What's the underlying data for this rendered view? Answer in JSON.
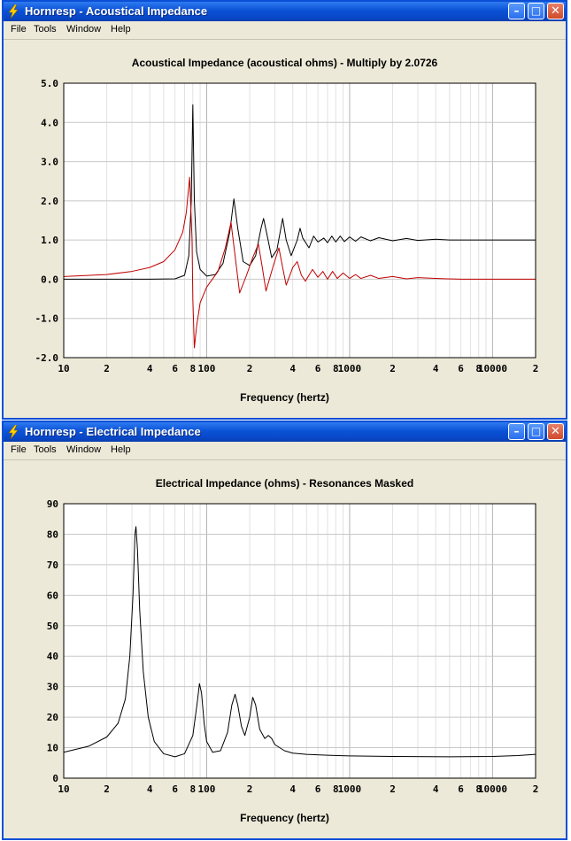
{
  "windows": [
    {
      "title": "Hornresp - Acoustical Impedance",
      "menu": [
        "File",
        "Tools",
        "Window",
        "Help"
      ],
      "chart_data": {
        "type": "line",
        "title": "Acoustical Impedance (acoustical ohms) - Multiply by 2.0726",
        "xlabel": "Frequency (hertz)",
        "ylabel": "",
        "xscale": "log",
        "xlim": [
          10,
          20000
        ],
        "ylim": [
          -2.0,
          5.0
        ],
        "yticks": [
          "5.0",
          "4.0",
          "3.0",
          "2.0",
          "1.0",
          "0.0",
          "-1.0",
          "-2.0"
        ],
        "xticks": [
          {
            "value": 10,
            "label": "10"
          },
          {
            "value": 20,
            "label": "2"
          },
          {
            "value": 40,
            "label": "4"
          },
          {
            "value": 60,
            "label": "6"
          },
          {
            "value": 80,
            "label": "8"
          },
          {
            "value": 100,
            "label": "100"
          },
          {
            "value": 200,
            "label": "2"
          },
          {
            "value": 400,
            "label": "4"
          },
          {
            "value": 600,
            "label": "6"
          },
          {
            "value": 800,
            "label": "8"
          },
          {
            "value": 1000,
            "label": "1000"
          },
          {
            "value": 2000,
            "label": "2"
          },
          {
            "value": 4000,
            "label": "4"
          },
          {
            "value": 6000,
            "label": "6"
          },
          {
            "value": 8000,
            "label": "8"
          },
          {
            "value": 10000,
            "label": "10000"
          },
          {
            "value": 20000,
            "label": "2"
          }
        ],
        "grid": true,
        "series": [
          {
            "color": "#000000",
            "points": [
              [
                10,
                0
              ],
              [
                40,
                0
              ],
              [
                60,
                0.01
              ],
              [
                70,
                0.1
              ],
              [
                75,
                0.6
              ],
              [
                78,
                2.0
              ],
              [
                80,
                4.45
              ],
              [
                82,
                2.0
              ],
              [
                85,
                0.7
              ],
              [
                90,
                0.25
              ],
              [
                100,
                0.08
              ],
              [
                115,
                0.12
              ],
              [
                130,
                0.4
              ],
              [
                145,
                1.2
              ],
              [
                155,
                2.05
              ],
              [
                165,
                1.3
              ],
              [
                180,
                0.45
              ],
              [
                200,
                0.35
              ],
              [
                220,
                0.6
              ],
              [
                240,
                1.3
              ],
              [
                250,
                1.55
              ],
              [
                262,
                1.2
              ],
              [
                285,
                0.55
              ],
              [
                310,
                0.75
              ],
              [
                340,
                1.55
              ],
              [
                360,
                1.0
              ],
              [
                390,
                0.6
              ],
              [
                430,
                1.0
              ],
              [
                450,
                1.3
              ],
              [
                470,
                1.05
              ],
              [
                520,
                0.8
              ],
              [
                560,
                1.1
              ],
              [
                600,
                0.95
              ],
              [
                660,
                1.05
              ],
              [
                700,
                0.93
              ],
              [
                750,
                1.1
              ],
              [
                800,
                0.95
              ],
              [
                860,
                1.1
              ],
              [
                920,
                0.96
              ],
              [
                1000,
                1.08
              ],
              [
                1100,
                0.97
              ],
              [
                1200,
                1.08
              ],
              [
                1400,
                0.98
              ],
              [
                1600,
                1.06
              ],
              [
                2000,
                0.98
              ],
              [
                2500,
                1.04
              ],
              [
                3000,
                0.99
              ],
              [
                4000,
                1.02
              ],
              [
                5000,
                1.0
              ],
              [
                8000,
                1.0
              ],
              [
                20000,
                1.0
              ]
            ]
          },
          {
            "color": "#c00000",
            "points": [
              [
                10,
                0.07
              ],
              [
                20,
                0.12
              ],
              [
                30,
                0.2
              ],
              [
                40,
                0.3
              ],
              [
                50,
                0.45
              ],
              [
                60,
                0.75
              ],
              [
                68,
                1.2
              ],
              [
                72,
                1.7
              ],
              [
                76,
                2.6
              ],
              [
                79,
                1.0
              ],
              [
                80,
                -0.5
              ],
              [
                82,
                -1.75
              ],
              [
                85,
                -1.2
              ],
              [
                90,
                -0.6
              ],
              [
                100,
                -0.2
              ],
              [
                120,
                0.2
              ],
              [
                135,
                0.8
              ],
              [
                148,
                1.45
              ],
              [
                158,
                0.6
              ],
              [
                170,
                -0.35
              ],
              [
                190,
                0.1
              ],
              [
                210,
                0.55
              ],
              [
                230,
                0.9
              ],
              [
                245,
                0.3
              ],
              [
                260,
                -0.3
              ],
              [
                290,
                0.3
              ],
              [
                320,
                0.8
              ],
              [
                340,
                0.3
              ],
              [
                360,
                -0.15
              ],
              [
                400,
                0.3
              ],
              [
                430,
                0.45
              ],
              [
                460,
                0.1
              ],
              [
                490,
                -0.05
              ],
              [
                550,
                0.25
              ],
              [
                600,
                0.05
              ],
              [
                650,
                0.2
              ],
              [
                700,
                0.0
              ],
              [
                760,
                0.2
              ],
              [
                820,
                0.02
              ],
              [
                900,
                0.16
              ],
              [
                1000,
                0.02
              ],
              [
                1100,
                0.12
              ],
              [
                1200,
                0.02
              ],
              [
                1400,
                0.1
              ],
              [
                1600,
                0.02
              ],
              [
                2000,
                0.07
              ],
              [
                2500,
                0.01
              ],
              [
                3000,
                0.04
              ],
              [
                4000,
                0.02
              ],
              [
                6000,
                0.0
              ],
              [
                20000,
                0.0
              ]
            ]
          }
        ]
      }
    },
    {
      "title": "Hornresp - Electrical Impedance",
      "menu": [
        "File",
        "Tools",
        "Window",
        "Help"
      ],
      "chart_data": {
        "type": "line",
        "title": "Electrical Impedance (ohms) - Resonances Masked",
        "xlabel": "Frequency (hertz)",
        "ylabel": "",
        "xscale": "log",
        "xlim": [
          10,
          20000
        ],
        "ylim": [
          0,
          90
        ],
        "yticks": [
          "90",
          "80",
          "70",
          "60",
          "50",
          "40",
          "30",
          "20",
          "10",
          "0"
        ],
        "xticks": [
          {
            "value": 10,
            "label": "10"
          },
          {
            "value": 20,
            "label": "2"
          },
          {
            "value": 40,
            "label": "4"
          },
          {
            "value": 60,
            "label": "6"
          },
          {
            "value": 80,
            "label": "8"
          },
          {
            "value": 100,
            "label": "100"
          },
          {
            "value": 200,
            "label": "2"
          },
          {
            "value": 400,
            "label": "4"
          },
          {
            "value": 600,
            "label": "6"
          },
          {
            "value": 800,
            "label": "8"
          },
          {
            "value": 1000,
            "label": "1000"
          },
          {
            "value": 2000,
            "label": "2"
          },
          {
            "value": 4000,
            "label": "4"
          },
          {
            "value": 6000,
            "label": "6"
          },
          {
            "value": 8000,
            "label": "8"
          },
          {
            "value": 10000,
            "label": "10000"
          },
          {
            "value": 20000,
            "label": "2"
          }
        ],
        "grid": true,
        "series": [
          {
            "color": "#000000",
            "points": [
              [
                10,
                8.5
              ],
              [
                15,
                10.5
              ],
              [
                20,
                13.5
              ],
              [
                24,
                18
              ],
              [
                27,
                26
              ],
              [
                29,
                40
              ],
              [
                30.5,
                60
              ],
              [
                31.5,
                80
              ],
              [
                32,
                82.5
              ],
              [
                32.8,
                75
              ],
              [
                34,
                55
              ],
              [
                36,
                35
              ],
              [
                39,
                20
              ],
              [
                43,
                12
              ],
              [
                50,
                8
              ],
              [
                60,
                7
              ],
              [
                70,
                8
              ],
              [
                80,
                14
              ],
              [
                86,
                25
              ],
              [
                89,
                31
              ],
              [
                92,
                28
              ],
              [
                96,
                18
              ],
              [
                100,
                12
              ],
              [
                110,
                8.5
              ],
              [
                125,
                9
              ],
              [
                140,
                15
              ],
              [
                150,
                24
              ],
              [
                158,
                27.5
              ],
              [
                165,
                24
              ],
              [
                175,
                17
              ],
              [
                185,
                14
              ],
              [
                200,
                20
              ],
              [
                210,
                26.5
              ],
              [
                220,
                24
              ],
              [
                235,
                16
              ],
              [
                255,
                13
              ],
              [
                270,
                14
              ],
              [
                285,
                13
              ],
              [
                300,
                11
              ],
              [
                350,
                9
              ],
              [
                400,
                8.2
              ],
              [
                500,
                7.8
              ],
              [
                700,
                7.5
              ],
              [
                1000,
                7.3
              ],
              [
                2000,
                7.1
              ],
              [
                5000,
                7
              ],
              [
                10000,
                7.1
              ],
              [
                15000,
                7.4
              ],
              [
                20000,
                7.8
              ]
            ]
          }
        ]
      }
    }
  ]
}
